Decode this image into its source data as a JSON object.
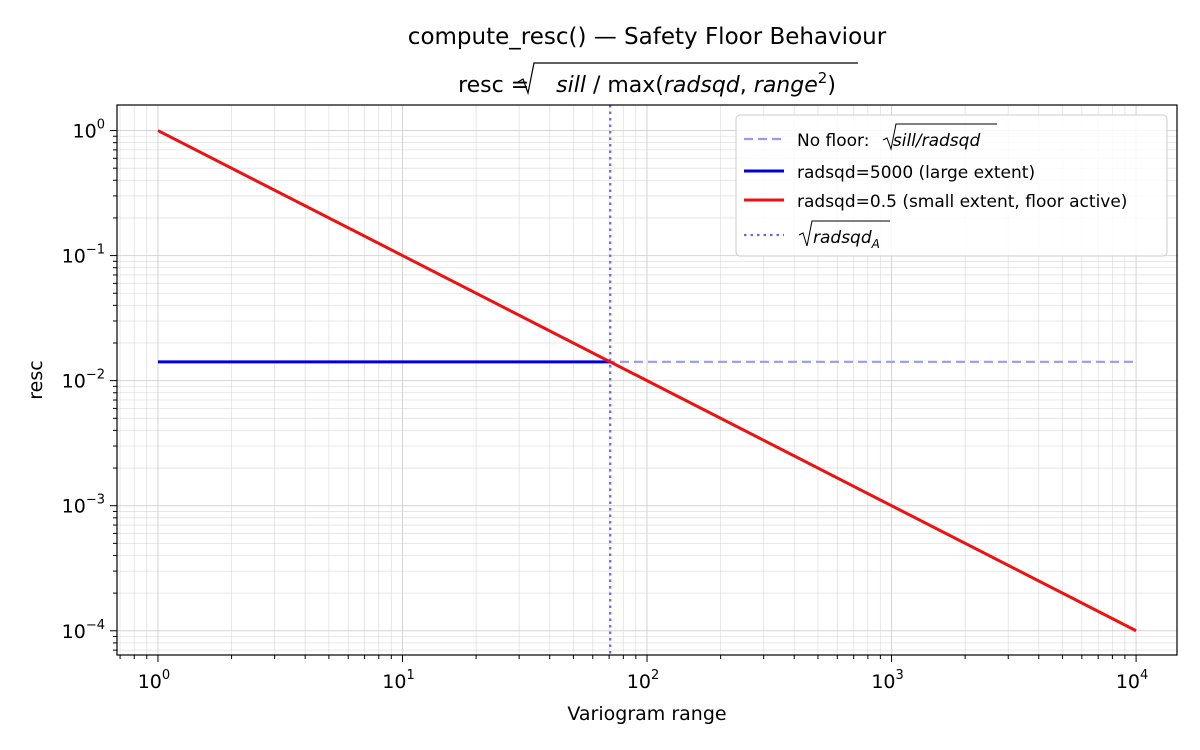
{
  "chart_data": {
    "type": "line",
    "title": {
      "line1": "compute_resc() — Safety Floor Behaviour",
      "line2": {
        "prefix": "resc = ",
        "numerator": "sill",
        "slash": " / ",
        "func": "max(",
        "arg1": "radsqd",
        "comma": ", ",
        "arg2": "range",
        "sup": "2",
        "close": ")"
      }
    },
    "xlabel": "Variogram range",
    "ylabel": "resc",
    "xscale": "log",
    "yscale": "log",
    "xlim": [
      0.68,
      14700
    ],
    "ylim": [
      6.4e-05,
      1.6
    ],
    "xticks": [
      {
        "value": 1,
        "base": "10",
        "exp": "0"
      },
      {
        "value": 10,
        "base": "10",
        "exp": "1"
      },
      {
        "value": 100,
        "base": "10",
        "exp": "2"
      },
      {
        "value": 1000,
        "base": "10",
        "exp": "3"
      },
      {
        "value": 10000,
        "base": "10",
        "exp": "4"
      }
    ],
    "yticks": [
      {
        "value": 1,
        "base": "10",
        "exp": "0"
      },
      {
        "value": 0.1,
        "base": "10",
        "exp": "−1"
      },
      {
        "value": 0.01,
        "base": "10",
        "exp": "−2"
      },
      {
        "value": 0.001,
        "base": "10",
        "exp": "−3"
      },
      {
        "value": 0.0001,
        "base": "10",
        "exp": "−4"
      }
    ],
    "grid": true,
    "legend_position": "upper-right",
    "series": [
      {
        "legend_text": "No floor: ",
        "legend_math": "sill/radsqd",
        "color": "#9999ee",
        "style": "dashed",
        "x": [
          1,
          10000
        ],
        "y": [
          0.01414,
          0.01414
        ]
      },
      {
        "name": "radsqd=5000 (large extent)",
        "color": "#0000dd",
        "style": "solid",
        "x": [
          1,
          70.71
        ],
        "y": [
          0.01414,
          0.01414
        ]
      },
      {
        "name": "radsqd=0.5 (small extent, floor active)",
        "color": "#ee1111",
        "style": "solid",
        "x": [
          1,
          10,
          100,
          1000,
          10000
        ],
        "y": [
          1,
          0.1,
          0.01,
          0.001,
          0.0001
        ]
      },
      {
        "legend_math": "radsqd",
        "legend_sub": "A",
        "color": "#6666ee",
        "style": "dotted",
        "vline_x": 70.71
      }
    ]
  }
}
